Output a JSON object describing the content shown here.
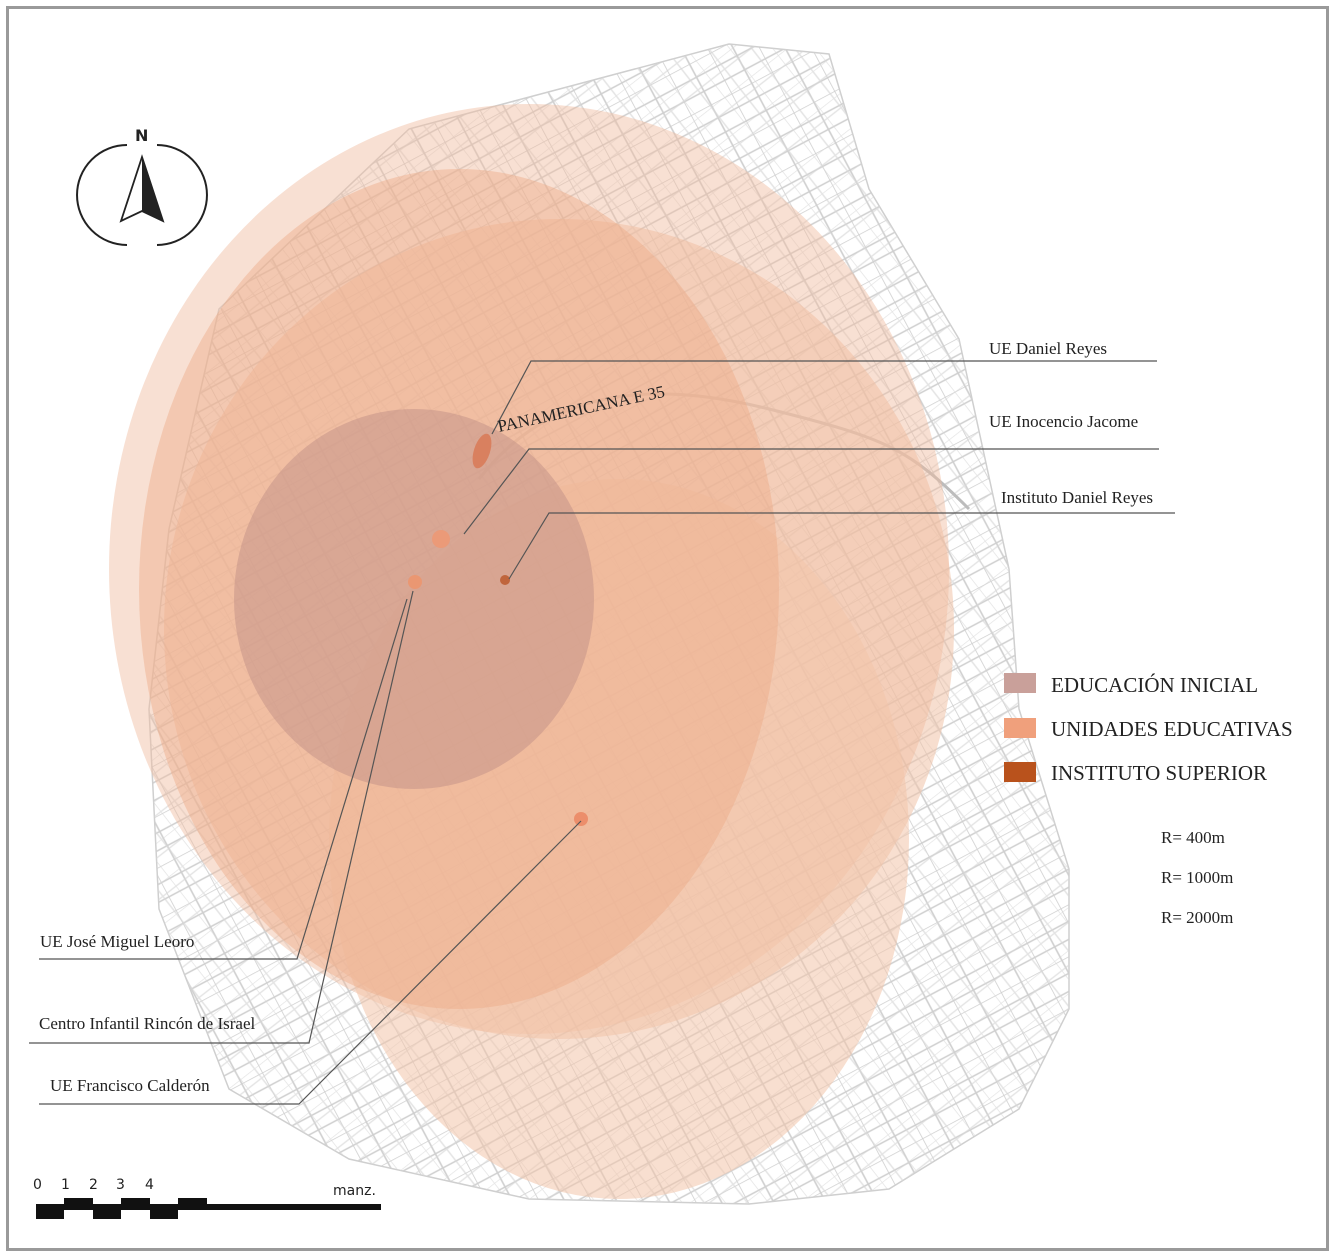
{
  "map": {
    "road_label": "PANAMERICANA E 35",
    "north_label": "N",
    "schools": [
      {
        "name": "UE Daniel Reyes"
      },
      {
        "name": "UE Inocencio Jacome"
      },
      {
        "name": "Instituto Daniel Reyes"
      },
      {
        "name": "UE  José Miguel Leoro"
      },
      {
        "name": "Centro Infantil Rincón de Israel"
      },
      {
        "name": "UE Francisco Calderón"
      }
    ]
  },
  "legend": {
    "items": [
      {
        "label": "EDUCACIÓN INICIAL",
        "color": "#c9a09a"
      },
      {
        "label": "UNIDADES EDUCATIVAS",
        "color": "#f0a07c"
      },
      {
        "label": "INSTITUTO SUPERIOR",
        "color": "#b9521c"
      }
    ],
    "radii": [
      "R= 400m",
      "R= 1000m",
      "R= 2000m"
    ]
  },
  "scale_bar": {
    "ticks": [
      "0",
      "1",
      "2",
      "3",
      "4"
    ],
    "unit": "manz."
  },
  "colors": {
    "road_lines": "#d4d4d4",
    "buffer_light": "#f3c9b3",
    "buffer_mid": "#efb08e",
    "buffer_initial": "#c7998e",
    "frame": "#9a9a9a"
  }
}
